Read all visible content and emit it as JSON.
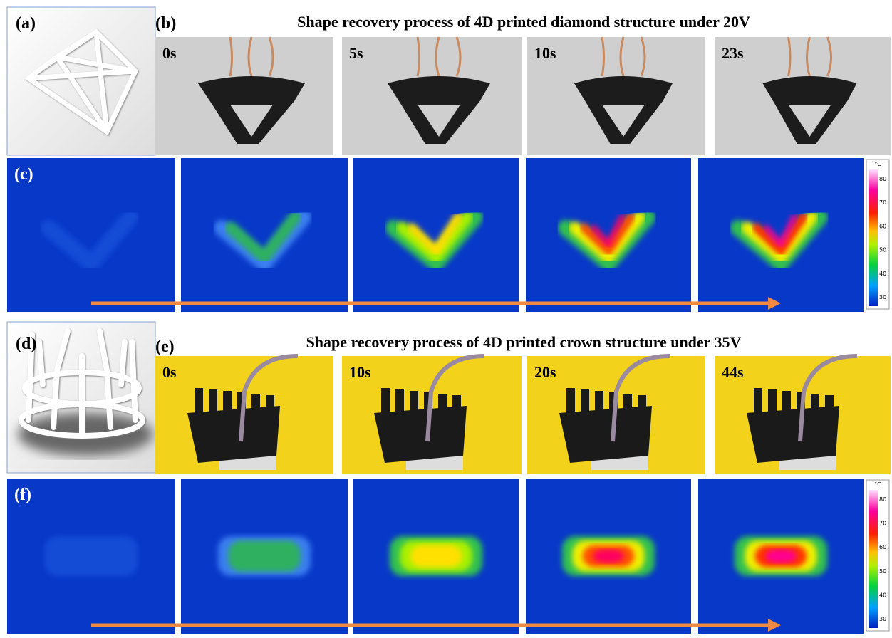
{
  "top": {
    "panel_a": "(a)",
    "panel_b": "(b)",
    "panel_c": "(c)",
    "title": "Shape recovery process of 4D printed diamond structure under 20V",
    "times": [
      "0s",
      "5s",
      "10s",
      "23s"
    ]
  },
  "bottom": {
    "panel_d": "(d)",
    "panel_e": "(e)",
    "panel_f": "(f)",
    "title": "Shape recovery process of 4D printed crown structure under 35V",
    "times": [
      "0s",
      "10s",
      "20s",
      "44s"
    ]
  },
  "colorbar": {
    "unit": "°C",
    "ticks": [
      "80",
      "70",
      "60",
      "50",
      "40",
      "30"
    ]
  }
}
